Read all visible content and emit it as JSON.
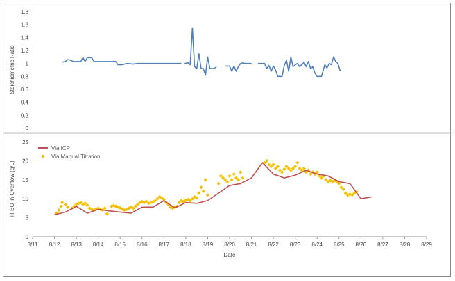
{
  "chart_data": [
    {
      "type": "line",
      "title": "",
      "xlabel": "",
      "ylabel": "Stoichiometric Ratio",
      "ylim": [
        0,
        1.8
      ],
      "yticks": [
        "0",
        "0.2",
        "0.4",
        "0.6",
        "0.8",
        "1",
        "1.2",
        "1.4",
        "1.6",
        "1.8"
      ],
      "grid": false,
      "colors": {
        "line": "#4f81bd"
      },
      "series": [
        {
          "segments": [
            [
              [
                12.35,
                1.02
              ],
              [
                12.5,
                1.03
              ],
              [
                12.6,
                1.06
              ],
              [
                12.75,
                1.05
              ],
              [
                12.85,
                1.03
              ],
              [
                13.0,
                1.03
              ],
              [
                13.2,
                1.03
              ],
              [
                13.3,
                1.09
              ],
              [
                13.4,
                1.03
              ],
              [
                13.5,
                1.09
              ],
              [
                13.7,
                1.09
              ],
              [
                13.8,
                1.03
              ],
              [
                14.2,
                1.03
              ],
              [
                14.5,
                1.03
              ],
              [
                14.8,
                1.03
              ],
              [
                14.9,
                0.98
              ],
              [
                15.1,
                0.98
              ],
              [
                15.3,
                1.0
              ],
              [
                15.6,
                0.99
              ],
              [
                15.8,
                1.0
              ],
              [
                16.2,
                1.0
              ],
              [
                16.6,
                1.0
              ],
              [
                17.0,
                1.0
              ],
              [
                17.4,
                1.0
              ],
              [
                17.8,
                1.0
              ]
            ],
            [
              [
                17.95,
                1.0
              ],
              [
                18.1,
                1.01
              ],
              [
                18.2,
                0.98
              ],
              [
                18.3,
                1.55
              ],
              [
                18.4,
                0.95
              ],
              [
                18.5,
                0.92
              ],
              [
                18.6,
                1.15
              ],
              [
                18.7,
                0.92
              ],
              [
                18.8,
                0.92
              ],
              [
                18.9,
                0.82
              ],
              [
                19.0,
                1.1
              ],
              [
                19.1,
                0.92
              ],
              [
                19.2,
                0.92
              ],
              [
                19.3,
                0.92
              ],
              [
                19.4,
                0.95
              ]
            ],
            [
              [
                19.8,
                0.96
              ],
              [
                20.0,
                0.96
              ],
              [
                20.1,
                0.88
              ],
              [
                20.2,
                0.96
              ],
              [
                20.3,
                0.88
              ],
              [
                20.4,
                0.95
              ],
              [
                20.5,
                1.0
              ],
              [
                20.6,
                1.01
              ],
              [
                20.7,
                1.0
              ],
              [
                21.0,
                1.0
              ]
            ],
            [
              [
                21.3,
                1.0
              ],
              [
                21.6,
                1.0
              ],
              [
                21.7,
                0.92
              ],
              [
                21.8,
                0.97
              ],
              [
                21.9,
                0.88
              ],
              [
                22.0,
                0.96
              ],
              [
                22.1,
                0.9
              ],
              [
                22.2,
                0.8
              ],
              [
                22.4,
                0.8
              ],
              [
                22.5,
                0.97
              ],
              [
                22.6,
                1.05
              ],
              [
                22.7,
                0.88
              ],
              [
                22.8,
                1.1
              ],
              [
                22.9,
                0.95
              ],
              [
                23.0,
                0.98
              ],
              [
                23.1,
                1.0
              ],
              [
                23.2,
                0.95
              ],
              [
                23.3,
                0.98
              ],
              [
                23.4,
                1.02
              ],
              [
                23.5,
                0.95
              ],
              [
                23.6,
                1.03
              ],
              [
                23.7,
                0.92
              ],
              [
                23.8,
                0.95
              ],
              [
                23.9,
                0.85
              ],
              [
                24.0,
                0.8
              ],
              [
                24.2,
                0.8
              ],
              [
                24.35,
                0.98
              ],
              [
                24.45,
                0.93
              ],
              [
                24.55,
                1.0
              ],
              [
                24.65,
                0.98
              ],
              [
                24.75,
                1.1
              ],
              [
                24.85,
                1.03
              ],
              [
                24.95,
                1.0
              ],
              [
                25.05,
                0.88
              ]
            ]
          ]
        }
      ]
    },
    {
      "type": "line",
      "title": "",
      "xlabel": "Date",
      "ylabel": "TFEO in Overflow (g/L)",
      "ylim": [
        0,
        25
      ],
      "yticks": [
        "0",
        "5",
        "10",
        "15",
        "20",
        "25"
      ],
      "xlim": [
        "8/11",
        "8/29"
      ],
      "xticks": [
        "8/11",
        "8/12",
        "8/13",
        "8/14",
        "8/15",
        "8/16",
        "8/17",
        "8/18",
        "8/19",
        "8/20",
        "8/21",
        "8/22",
        "8/23",
        "8/24",
        "8/25",
        "8/26",
        "8/27",
        "8/28",
        "8/29"
      ],
      "grid": false,
      "legend_position": "top-left",
      "series": [
        {
          "name": "Via ICP",
          "kind": "line",
          "color": "#c0504d",
          "points": [
            [
              12.0,
              5.8
            ],
            [
              12.5,
              6.5
            ],
            [
              13.0,
              8.0
            ],
            [
              13.5,
              6.2
            ],
            [
              14.0,
              7.2
            ],
            [
              14.5,
              6.8
            ],
            [
              15.0,
              6.5
            ],
            [
              15.5,
              6.2
            ],
            [
              16.0,
              7.8
            ],
            [
              16.5,
              7.8
            ],
            [
              17.0,
              9.5
            ],
            [
              17.5,
              7.6
            ],
            [
              18.0,
              9.0
            ],
            [
              18.5,
              8.8
            ],
            [
              19.0,
              9.5
            ],
            [
              19.5,
              11.5
            ],
            [
              20.0,
              13.5
            ],
            [
              20.5,
              14.0
            ],
            [
              21.0,
              15.5
            ],
            [
              21.5,
              19.5
            ],
            [
              22.0,
              16.5
            ],
            [
              22.5,
              15.5
            ],
            [
              23.0,
              16.2
            ],
            [
              23.5,
              17.5
            ],
            [
              24.0,
              16.5
            ],
            [
              24.5,
              16.0
            ],
            [
              25.0,
              14.5
            ],
            [
              25.5,
              14.0
            ],
            [
              26.0,
              10.0
            ],
            [
              26.5,
              10.5
            ]
          ]
        },
        {
          "name": "Via Manual Titration",
          "kind": "scatter",
          "color": "#f5c000",
          "points": [
            [
              12.1,
              6.2
            ],
            [
              12.2,
              7.0
            ],
            [
              12.3,
              8.0
            ],
            [
              12.35,
              9.0
            ],
            [
              12.5,
              8.5
            ],
            [
              12.6,
              7.8
            ],
            [
              12.8,
              7.5
            ],
            [
              12.9,
              8.0
            ],
            [
              13.0,
              8.5
            ],
            [
              13.1,
              8.8
            ],
            [
              13.2,
              9.0
            ],
            [
              13.3,
              8.5
            ],
            [
              13.4,
              8.8
            ],
            [
              13.5,
              8.3
            ],
            [
              13.6,
              7.5
            ],
            [
              13.7,
              7.2
            ],
            [
              13.8,
              7.0
            ],
            [
              13.9,
              7.3
            ],
            [
              14.0,
              7.5
            ],
            [
              14.1,
              7.2
            ],
            [
              14.2,
              7.0
            ],
            [
              14.3,
              7.5
            ],
            [
              14.4,
              6.0
            ],
            [
              14.6,
              8.0
            ],
            [
              14.7,
              8.2
            ],
            [
              14.8,
              8.0
            ],
            [
              14.9,
              7.8
            ],
            [
              15.0,
              7.6
            ],
            [
              15.1,
              7.3
            ],
            [
              15.2,
              7.0
            ],
            [
              15.3,
              7.2
            ],
            [
              15.4,
              7.5
            ],
            [
              15.5,
              7.8
            ],
            [
              15.6,
              7.5
            ],
            [
              15.7,
              8.0
            ],
            [
              15.8,
              8.5
            ],
            [
              15.9,
              9.0
            ],
            [
              16.0,
              9.2
            ],
            [
              16.1,
              9.0
            ],
            [
              16.2,
              9.3
            ],
            [
              16.3,
              8.8
            ],
            [
              16.4,
              9.0
            ],
            [
              16.5,
              9.2
            ],
            [
              16.6,
              9.5
            ],
            [
              16.7,
              10.0
            ],
            [
              16.8,
              10.5
            ],
            [
              16.9,
              10.2
            ],
            [
              17.0,
              9.8
            ],
            [
              17.1,
              9.0
            ],
            [
              17.2,
              8.5
            ],
            [
              17.3,
              7.8
            ],
            [
              17.4,
              7.5
            ],
            [
              17.5,
              7.8
            ],
            [
              17.6,
              8.0
            ],
            [
              17.7,
              9.0
            ],
            [
              17.8,
              9.5
            ],
            [
              17.9,
              9.2
            ],
            [
              18.0,
              9.6
            ],
            [
              18.1,
              9.8
            ],
            [
              18.2,
              9.5
            ],
            [
              18.3,
              10.0
            ],
            [
              18.4,
              10.5
            ],
            [
              18.5,
              10.2
            ],
            [
              18.6,
              11.5
            ],
            [
              18.7,
              13.0
            ],
            [
              18.8,
              12.0
            ],
            [
              18.9,
              15.0
            ],
            [
              19.0,
              11.0
            ],
            [
              19.5,
              14.0
            ],
            [
              19.6,
              16.0
            ],
            [
              19.7,
              15.5
            ],
            [
              19.8,
              15.0
            ],
            [
              19.9,
              14.5
            ],
            [
              20.0,
              16.0
            ],
            [
              20.1,
              15.0
            ],
            [
              20.2,
              16.5
            ],
            [
              20.3,
              15.5
            ],
            [
              20.4,
              15.0
            ],
            [
              20.5,
              17.0
            ],
            [
              20.6,
              15.5
            ],
            [
              21.6,
              19.5
            ],
            [
              21.7,
              20.0
            ],
            [
              21.8,
              19.0
            ],
            [
              21.9,
              18.5
            ],
            [
              22.0,
              19.0
            ],
            [
              22.1,
              18.0
            ],
            [
              22.2,
              18.5
            ],
            [
              22.3,
              17.5
            ],
            [
              22.4,
              17.0
            ],
            [
              22.5,
              17.8
            ],
            [
              22.6,
              18.5
            ],
            [
              22.7,
              18.0
            ],
            [
              22.8,
              17.5
            ],
            [
              22.9,
              18.0
            ],
            [
              23.0,
              18.5
            ],
            [
              23.1,
              19.5
            ],
            [
              23.2,
              18.0
            ],
            [
              23.3,
              17.5
            ],
            [
              23.4,
              18.0
            ],
            [
              23.5,
              17.0
            ],
            [
              23.6,
              17.5
            ],
            [
              23.7,
              16.5
            ],
            [
              23.8,
              17.0
            ],
            [
              23.9,
              16.5
            ],
            [
              24.0,
              17.0
            ],
            [
              24.1,
              16.0
            ],
            [
              24.2,
              15.5
            ],
            [
              24.3,
              16.0
            ],
            [
              24.4,
              15.0
            ],
            [
              24.5,
              14.5
            ],
            [
              24.6,
              14.8
            ],
            [
              24.7,
              14.5
            ],
            [
              24.8,
              14.8
            ],
            [
              24.9,
              14.5
            ],
            [
              25.0,
              14.0
            ],
            [
              25.1,
              13.0
            ],
            [
              25.2,
              12.5
            ],
            [
              25.3,
              11.5
            ],
            [
              25.4,
              11.0
            ],
            [
              25.5,
              11.2
            ],
            [
              25.6,
              11.0
            ],
            [
              25.7,
              11.5
            ],
            [
              25.8,
              11.8
            ]
          ]
        }
      ]
    }
  ]
}
